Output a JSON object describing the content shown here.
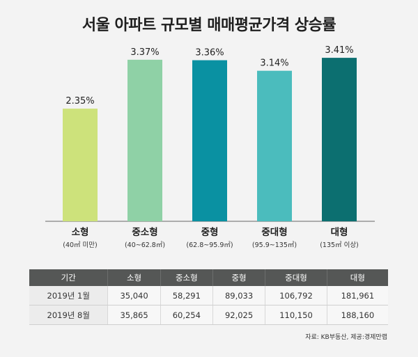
{
  "chart_data": {
    "type": "bar",
    "title": "서울 아파트 규모별 매매평균가격 상승률",
    "categories": [
      "소형",
      "중소형",
      "중형",
      "중대형",
      "대형"
    ],
    "category_sublabels": [
      "(40㎡ 미만)",
      "(40~62.8㎡)",
      "(62.8~95.9㎡)",
      "(95.9~135㎡)",
      "(135㎡ 이상)"
    ],
    "values": [
      2.35,
      3.37,
      3.36,
      3.14,
      3.41
    ],
    "value_labels": [
      "2.35%",
      "3.37%",
      "3.36%",
      "3.14%",
      "3.41%"
    ],
    "colors": [
      "#cde27b",
      "#8fd1a6",
      "#0a91a2",
      "#4bbcbd",
      "#0c6f70"
    ],
    "ylim": [
      0,
      3.6
    ],
    "grid": false
  },
  "table": {
    "headers": [
      "기간",
      "소형",
      "중소형",
      "중형",
      "중대형",
      "대형"
    ],
    "rows": [
      [
        "2019년 1월",
        "35,040",
        "58,291",
        "89,033",
        "106,792",
        "181,961"
      ],
      [
        "2019년 8월",
        "35,865",
        "60,254",
        "92,025",
        "110,150",
        "188,160"
      ]
    ]
  },
  "source": "자료: KB부동산, 제공:경제만랩"
}
